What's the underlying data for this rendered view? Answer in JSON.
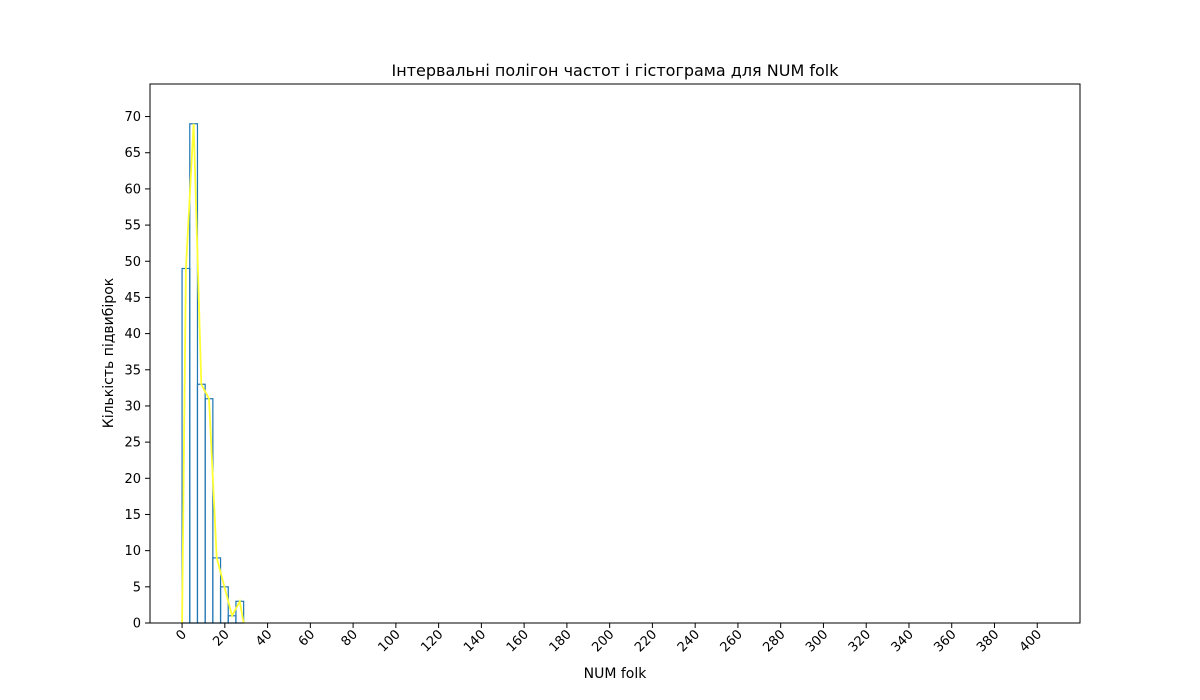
{
  "chart_data": {
    "type": "bar",
    "title": "Інтервальні полігон частот і гістограма для NUM folk",
    "xlabel": "NUM folk",
    "ylabel": "Кількість підвибірок",
    "xlim": [
      -15,
      420
    ],
    "ylim": [
      0,
      74.5
    ],
    "x_ticks": [
      0,
      20,
      40,
      60,
      80,
      100,
      120,
      140,
      160,
      180,
      200,
      220,
      240,
      260,
      280,
      300,
      320,
      340,
      360,
      380,
      400
    ],
    "y_ticks": [
      0,
      5,
      10,
      15,
      20,
      25,
      30,
      35,
      40,
      45,
      50,
      55,
      60,
      65,
      70
    ],
    "bins": [
      0,
      3.6,
      7.2,
      10.8,
      14.4,
      18,
      21.6,
      25.2,
      28.8
    ],
    "series": [
      {
        "type": "histogram",
        "values": [
          49,
          69,
          33,
          31,
          9,
          5,
          1,
          3
        ],
        "color": "#1f77b4"
      },
      {
        "type": "polygon",
        "x": [
          0,
          1.8,
          5.4,
          9,
          12.6,
          16.2,
          19.8,
          23.4,
          27,
          28.8
        ],
        "y": [
          0,
          49,
          69,
          33,
          31,
          9,
          5,
          1,
          3,
          0
        ],
        "color": "#ffff33"
      }
    ],
    "grid": false,
    "legend": "none"
  }
}
